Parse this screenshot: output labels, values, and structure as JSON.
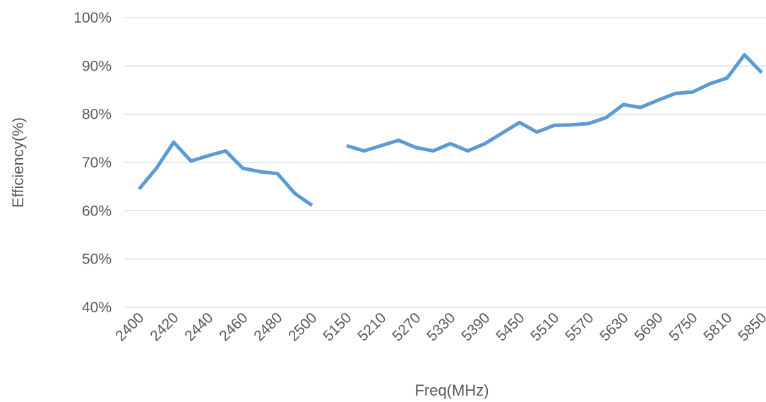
{
  "chart_data": {
    "type": "line",
    "title": "",
    "xlabel": "Freq(MHz)",
    "ylabel": "Efficiency(%)",
    "ylim": [
      40,
      100
    ],
    "yticks": [
      40,
      50,
      60,
      70,
      80,
      90,
      100
    ],
    "ytick_labels": [
      "40%",
      "50%",
      "60%",
      "70%",
      "80%",
      "90%",
      "100%"
    ],
    "grid": true,
    "legend": "none",
    "x_label_ticks": [
      "2400",
      "2420",
      "2440",
      "2460",
      "2480",
      "2500",
      "5150",
      "5210",
      "5270",
      "5330",
      "5390",
      "5450",
      "5510",
      "5570",
      "5630",
      "5690",
      "5750",
      "5810",
      "5850"
    ],
    "series": [
      {
        "color": "#5b9bd5",
        "segments": [
          {
            "x": [
              "2400",
              "2410",
              "2420",
              "2430",
              "2440",
              "2450",
              "2460",
              "2470",
              "2480",
              "2490",
              "2500"
            ],
            "y": [
              64.5,
              68.8,
              74.2,
              70.3,
              71.4,
              72.4,
              68.8,
              68.1,
              67.7,
              63.6,
              61.1
            ]
          },
          {
            "x": [
              "5150",
              "5180",
              "5210",
              "5240",
              "5270",
              "5300",
              "5330",
              "5360",
              "5390",
              "5420",
              "5450",
              "5480",
              "5510",
              "5540",
              "5570",
              "5600",
              "5630",
              "5660",
              "5690",
              "5720",
              "5750",
              "5780",
              "5810",
              "5830",
              "5850"
            ],
            "y": [
              73.5,
              72.4,
              73.5,
              74.6,
              73.1,
              72.4,
              73.9,
              72.4,
              73.9,
              76.1,
              78.3,
              76.3,
              77.7,
              77.8,
              78.1,
              79.3,
              82.0,
              81.4,
              82.9,
              84.3,
              84.6,
              86.3,
              87.5,
              92.3,
              88.6
            ]
          }
        ]
      }
    ]
  }
}
